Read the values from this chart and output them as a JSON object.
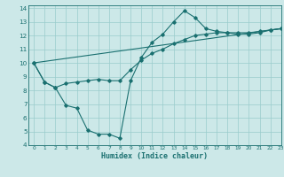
{
  "xlabel": "Humidex (Indice chaleur)",
  "bg_color": "#cce8e8",
  "line_color": "#1a7070",
  "grid_color": "#99cccc",
  "xlim": [
    -0.5,
    23
  ],
  "ylim": [
    4,
    14.2
  ],
  "xticks": [
    0,
    1,
    2,
    3,
    4,
    5,
    6,
    7,
    8,
    9,
    10,
    11,
    12,
    13,
    14,
    15,
    16,
    17,
    18,
    19,
    20,
    21,
    22,
    23
  ],
  "yticks": [
    4,
    5,
    6,
    7,
    8,
    9,
    10,
    11,
    12,
    13,
    14
  ],
  "line1_x": [
    0,
    1,
    2,
    3,
    4,
    5,
    6,
    7,
    8,
    9,
    10,
    11,
    12,
    13,
    14,
    15,
    16,
    17,
    18,
    19,
    20,
    21,
    22,
    23
  ],
  "line1_y": [
    10.0,
    8.6,
    8.2,
    6.9,
    6.7,
    5.1,
    4.8,
    4.8,
    4.5,
    8.7,
    10.4,
    11.5,
    12.1,
    13.0,
    13.8,
    13.3,
    12.5,
    12.3,
    12.2,
    12.1,
    12.1,
    12.2,
    12.4,
    12.5
  ],
  "line2_x": [
    0,
    1,
    2,
    3,
    4,
    5,
    6,
    7,
    8,
    9,
    10,
    11,
    12,
    13,
    14,
    15,
    16,
    17,
    18,
    19,
    20,
    21,
    22,
    23
  ],
  "line2_y": [
    10.0,
    8.6,
    8.2,
    8.5,
    8.6,
    8.7,
    8.8,
    8.7,
    8.7,
    9.5,
    10.2,
    10.7,
    11.0,
    11.4,
    11.7,
    12.0,
    12.1,
    12.2,
    12.2,
    12.2,
    12.2,
    12.3,
    12.4,
    12.5
  ],
  "line3_x": [
    0,
    23
  ],
  "line3_y": [
    10.0,
    12.5
  ]
}
